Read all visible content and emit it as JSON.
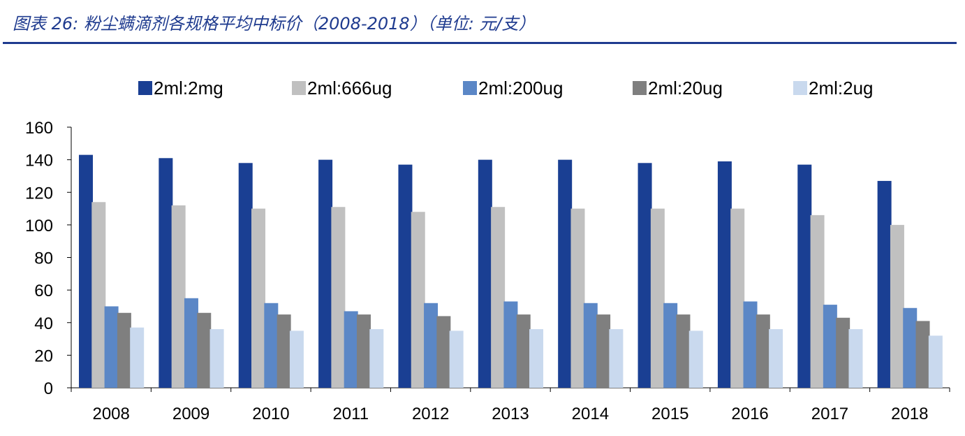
{
  "header": {
    "title": "图表 26: 粉尘螨滴剂各规格平均中标价（2008-2018）（单位: 元/支）"
  },
  "chart_data": {
    "type": "bar",
    "title": "粉尘螨滴剂各规格平均中标价（2008-2018）（单位: 元/支）",
    "xlabel": "",
    "ylabel": "",
    "ylim": [
      0,
      160
    ],
    "yticks": [
      0,
      20,
      40,
      60,
      80,
      100,
      120,
      140,
      160
    ],
    "legend_position": "top",
    "grid": false,
    "categories": [
      "2008",
      "2009",
      "2010",
      "2011",
      "2012",
      "2013",
      "2014",
      "2015",
      "2016",
      "2017",
      "2018"
    ],
    "series": [
      {
        "name": "2ml:2mg",
        "color": "#1a3f93",
        "values": [
          143,
          141,
          138,
          140,
          137,
          140,
          140,
          138,
          139,
          137,
          127
        ]
      },
      {
        "name": "2ml:666ug",
        "color": "#c0c0c0",
        "values": [
          114,
          112,
          110,
          111,
          108,
          111,
          110,
          110,
          110,
          106,
          100
        ]
      },
      {
        "name": "2ml:200ug",
        "color": "#5b87c6",
        "values": [
          50,
          55,
          52,
          47,
          52,
          53,
          52,
          52,
          53,
          51,
          49
        ]
      },
      {
        "name": "2ml:20ug",
        "color": "#7f7f7f",
        "values": [
          46,
          46,
          45,
          45,
          44,
          45,
          45,
          45,
          45,
          43,
          41
        ]
      },
      {
        "name": "2ml:2ug",
        "color": "#c9d9ee",
        "values": [
          37,
          36,
          35,
          36,
          35,
          36,
          36,
          35,
          36,
          36,
          32
        ]
      }
    ]
  }
}
